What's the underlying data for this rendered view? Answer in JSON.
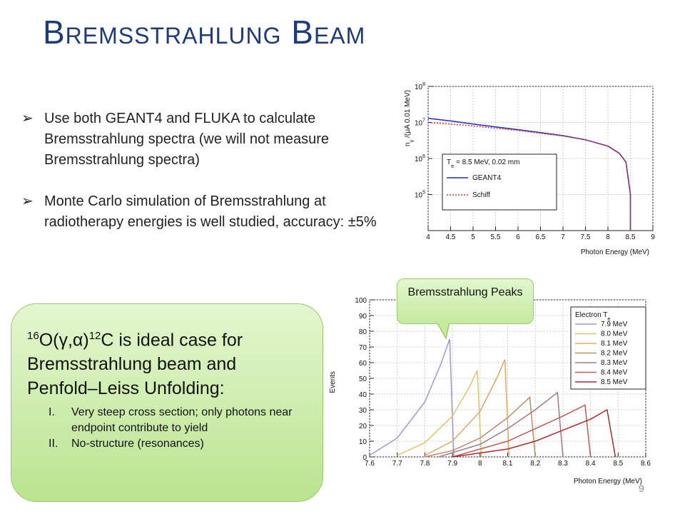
{
  "header": {
    "title": "Bremsstrahlung Beam"
  },
  "bullets": [
    "Use both GEANT4 and FLUKA to calculate Bremsstrahlung spectra (we will not measure Bremsstrahlung spectra)",
    "Monte Carlo simulation of Bremsstrahlung at radiotherapy energies is well studied, accuracy: ±5%"
  ],
  "box": {
    "pre_sup": "16",
    "pre": "O(γ,α)",
    "mid_sup": "12",
    "post": "C is ideal case for Bremsstrahlung beam and Penfold–Leiss Unfolding:",
    "items": [
      {
        "numeral": "I.",
        "text": "Very steep cross section; only photons near endpoint contribute to yield"
      },
      {
        "numeral": "II.",
        "text": "No-structure (resonances)"
      }
    ]
  },
  "callout": "Bremsstrahlung Peaks",
  "page_number": "9",
  "chart_data": [
    {
      "type": "line",
      "log_y": true,
      "grid": true,
      "legend": "lower-left",
      "xlabel": "Photon Energy (MeV)",
      "ylabel": {
        "text": "n",
        "sub": "γ",
        "rest": " /(μA 0.01 MeV)"
      },
      "legend_title": {
        "text": "T",
        "sub": "e",
        "rest": " = 8.5 MeV, 0.02 mm"
      },
      "xlim": [
        4,
        9
      ],
      "xticks": [
        4,
        4.5,
        5,
        5.5,
        6,
        6.5,
        7,
        7.5,
        8,
        8.5,
        9
      ],
      "ylim": [
        10000,
        100000000
      ],
      "yticks": [
        {
          "value": 100000,
          "label": "10",
          "exponent": "5"
        },
        {
          "value": 1000000,
          "label": "10",
          "exponent": "6"
        },
        {
          "value": 10000000,
          "label": "10",
          "exponent": "7"
        },
        {
          "value": 100000000,
          "label": "10",
          "exponent": "8"
        }
      ],
      "x": [
        4,
        4.5,
        5,
        5.5,
        6,
        6.5,
        7,
        7.5,
        8,
        8.25,
        8.4,
        8.5,
        8.5
      ],
      "series": [
        {
          "name": "GEANT4",
          "color": "#1f2ab8",
          "line_style": "solid",
          "values": [
            13000000,
            11000000,
            9000000,
            7500000,
            6300000,
            5200000,
            4300000,
            3300000,
            2200000,
            1400000,
            800000,
            100000,
            10000
          ]
        },
        {
          "name": "Schiff",
          "color": "#e03030",
          "line_style": "dotted",
          "values": [
            10000000,
            9000000,
            8000000,
            6900000,
            6000000,
            5000000,
            4200000,
            3300000,
            2200000,
            1400000,
            800000,
            100000,
            10000
          ]
        }
      ]
    },
    {
      "type": "line",
      "log_y": false,
      "grid": true,
      "legend": "upper-right",
      "xlabel": "Photon Energy (MeV)",
      "ylabel": {
        "text": "Events"
      },
      "legend_title": {
        "text": "Electron T",
        "sub": "e"
      },
      "xlim": [
        7.6,
        8.6
      ],
      "xticks": [
        7.6,
        7.7,
        7.8,
        7.9,
        8,
        8.1,
        8.2,
        8.3,
        8.4,
        8.5,
        8.6
      ],
      "ylim": [
        0,
        100
      ],
      "yticks": [
        0,
        10,
        20,
        30,
        40,
        50,
        60,
        70,
        80,
        90,
        100
      ],
      "series": [
        {
          "name": "7.9 MeV",
          "color": "#9a9ad0",
          "line_style": "solid",
          "x": [
            7.6,
            7.7,
            7.8,
            7.86,
            7.89,
            7.905
          ],
          "values": [
            1,
            12,
            35,
            60,
            75,
            0
          ]
        },
        {
          "name": "8.0 MeV",
          "color": "#e0c468",
          "line_style": "solid",
          "x": [
            7.7,
            7.8,
            7.9,
            7.96,
            7.99,
            8.005
          ],
          "values": [
            1,
            9,
            26,
            44,
            55,
            0
          ]
        },
        {
          "name": "8.1 MeV",
          "color": "#e2a860",
          "line_style": "solid",
          "x": [
            7.8,
            7.9,
            8.0,
            8.06,
            8.09,
            8.105
          ],
          "values": [
            1,
            10,
            29,
            50,
            62,
            0
          ]
        },
        {
          "name": "8.2 MeV",
          "color": "#c08a6a",
          "line_style": "solid",
          "x": [
            7.8,
            7.9,
            8.0,
            8.1,
            8.18,
            8.2
          ],
          "values": [
            0,
            4,
            12,
            25,
            38,
            0
          ]
        },
        {
          "name": "8.3 MeV",
          "color": "#a07890",
          "line_style": "solid",
          "x": [
            7.85,
            8.0,
            8.1,
            8.2,
            8.28,
            8.3
          ],
          "values": [
            0,
            8,
            18,
            30,
            41,
            0
          ]
        },
        {
          "name": "8.4 MeV",
          "color": "#c05a5a",
          "line_style": "solid",
          "x": [
            7.9,
            8.1,
            8.2,
            8.3,
            8.38,
            8.4
          ],
          "values": [
            0,
            10,
            18,
            26,
            33,
            0
          ]
        },
        {
          "name": "8.5 MeV",
          "color": "#b02828",
          "line_style": "solid",
          "x": [
            7.9,
            8.1,
            8.2,
            8.3,
            8.4,
            8.46,
            8.49
          ],
          "values": [
            0,
            5,
            10,
            17,
            24,
            30,
            0
          ]
        }
      ]
    }
  ]
}
